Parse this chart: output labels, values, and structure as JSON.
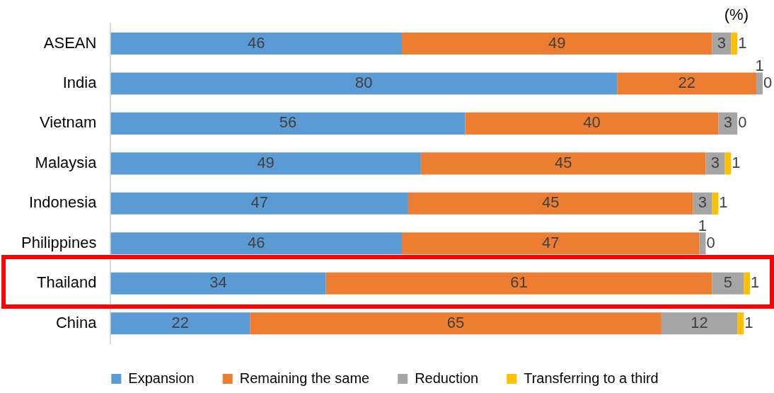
{
  "chart_data": {
    "type": "bar",
    "orientation": "horizontal",
    "stacked": true,
    "data_labels": true,
    "grid": false,
    "legend": "bottom",
    "tick_labels": "y",
    "annotations": [
      "(%)"
    ],
    "categories": [
      "ASEAN",
      "India",
      "Vietnam",
      "Malaysia",
      "Indonesia",
      "Philippines",
      "Thailand",
      "China"
    ],
    "series": [
      {
        "name": "Expansion",
        "color": "#5b9bd5",
        "values": [
          46,
          80,
          56,
          49,
          47,
          46,
          34,
          22
        ]
      },
      {
        "name": "Remaining the same",
        "color": "#ed7d31",
        "values": [
          49,
          22,
          40,
          45,
          45,
          47,
          61,
          65
        ]
      },
      {
        "name": "Reduction",
        "color": "#a5a5a5",
        "values": [
          3,
          1,
          3,
          3,
          3,
          1,
          5,
          12
        ]
      },
      {
        "name": "Transferring to a third",
        "color": "#ffc000",
        "values": [
          1,
          0,
          0,
          1,
          1,
          0,
          1,
          1
        ]
      }
    ]
  }
}
